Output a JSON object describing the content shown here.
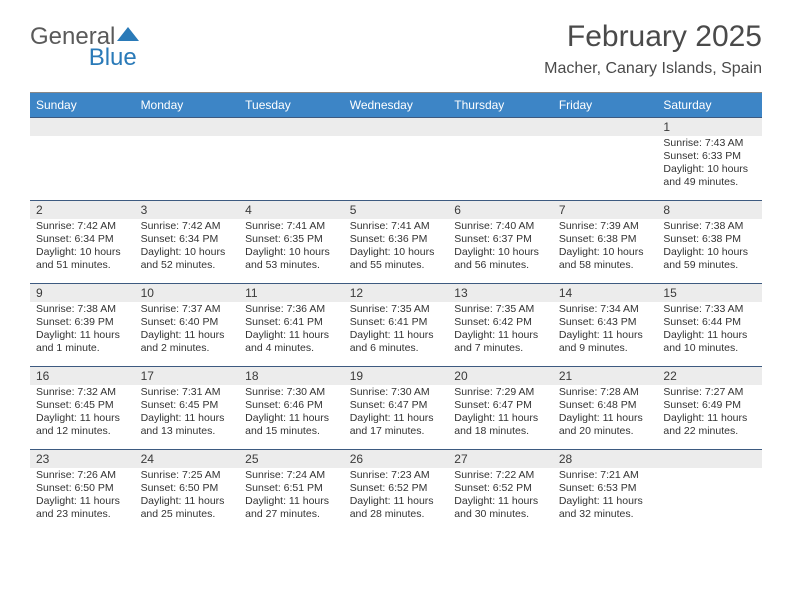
{
  "logo": {
    "text_a": "General",
    "text_b": "Blue"
  },
  "title": "February 2025",
  "location": "Macher, Canary Islands, Spain",
  "colors": {
    "header_bg": "#3d85c6",
    "header_text": "#ffffff",
    "daynum_bg": "#ececec",
    "rule": "#3d5a80",
    "text": "#333333",
    "logo_blue": "#2a7ab8"
  },
  "day_names": [
    "Sunday",
    "Monday",
    "Tuesday",
    "Wednesday",
    "Thursday",
    "Friday",
    "Saturday"
  ],
  "weeks": [
    [
      {
        "n": "",
        "sr": "",
        "ss": "",
        "dl": ""
      },
      {
        "n": "",
        "sr": "",
        "ss": "",
        "dl": ""
      },
      {
        "n": "",
        "sr": "",
        "ss": "",
        "dl": ""
      },
      {
        "n": "",
        "sr": "",
        "ss": "",
        "dl": ""
      },
      {
        "n": "",
        "sr": "",
        "ss": "",
        "dl": ""
      },
      {
        "n": "",
        "sr": "",
        "ss": "",
        "dl": ""
      },
      {
        "n": "1",
        "sr": "Sunrise: 7:43 AM",
        "ss": "Sunset: 6:33 PM",
        "dl": "Daylight: 10 hours and 49 minutes."
      }
    ],
    [
      {
        "n": "2",
        "sr": "Sunrise: 7:42 AM",
        "ss": "Sunset: 6:34 PM",
        "dl": "Daylight: 10 hours and 51 minutes."
      },
      {
        "n": "3",
        "sr": "Sunrise: 7:42 AM",
        "ss": "Sunset: 6:34 PM",
        "dl": "Daylight: 10 hours and 52 minutes."
      },
      {
        "n": "4",
        "sr": "Sunrise: 7:41 AM",
        "ss": "Sunset: 6:35 PM",
        "dl": "Daylight: 10 hours and 53 minutes."
      },
      {
        "n": "5",
        "sr": "Sunrise: 7:41 AM",
        "ss": "Sunset: 6:36 PM",
        "dl": "Daylight: 10 hours and 55 minutes."
      },
      {
        "n": "6",
        "sr": "Sunrise: 7:40 AM",
        "ss": "Sunset: 6:37 PM",
        "dl": "Daylight: 10 hours and 56 minutes."
      },
      {
        "n": "7",
        "sr": "Sunrise: 7:39 AM",
        "ss": "Sunset: 6:38 PM",
        "dl": "Daylight: 10 hours and 58 minutes."
      },
      {
        "n": "8",
        "sr": "Sunrise: 7:38 AM",
        "ss": "Sunset: 6:38 PM",
        "dl": "Daylight: 10 hours and 59 minutes."
      }
    ],
    [
      {
        "n": "9",
        "sr": "Sunrise: 7:38 AM",
        "ss": "Sunset: 6:39 PM",
        "dl": "Daylight: 11 hours and 1 minute."
      },
      {
        "n": "10",
        "sr": "Sunrise: 7:37 AM",
        "ss": "Sunset: 6:40 PM",
        "dl": "Daylight: 11 hours and 2 minutes."
      },
      {
        "n": "11",
        "sr": "Sunrise: 7:36 AM",
        "ss": "Sunset: 6:41 PM",
        "dl": "Daylight: 11 hours and 4 minutes."
      },
      {
        "n": "12",
        "sr": "Sunrise: 7:35 AM",
        "ss": "Sunset: 6:41 PM",
        "dl": "Daylight: 11 hours and 6 minutes."
      },
      {
        "n": "13",
        "sr": "Sunrise: 7:35 AM",
        "ss": "Sunset: 6:42 PM",
        "dl": "Daylight: 11 hours and 7 minutes."
      },
      {
        "n": "14",
        "sr": "Sunrise: 7:34 AM",
        "ss": "Sunset: 6:43 PM",
        "dl": "Daylight: 11 hours and 9 minutes."
      },
      {
        "n": "15",
        "sr": "Sunrise: 7:33 AM",
        "ss": "Sunset: 6:44 PM",
        "dl": "Daylight: 11 hours and 10 minutes."
      }
    ],
    [
      {
        "n": "16",
        "sr": "Sunrise: 7:32 AM",
        "ss": "Sunset: 6:45 PM",
        "dl": "Daylight: 11 hours and 12 minutes."
      },
      {
        "n": "17",
        "sr": "Sunrise: 7:31 AM",
        "ss": "Sunset: 6:45 PM",
        "dl": "Daylight: 11 hours and 13 minutes."
      },
      {
        "n": "18",
        "sr": "Sunrise: 7:30 AM",
        "ss": "Sunset: 6:46 PM",
        "dl": "Daylight: 11 hours and 15 minutes."
      },
      {
        "n": "19",
        "sr": "Sunrise: 7:30 AM",
        "ss": "Sunset: 6:47 PM",
        "dl": "Daylight: 11 hours and 17 minutes."
      },
      {
        "n": "20",
        "sr": "Sunrise: 7:29 AM",
        "ss": "Sunset: 6:47 PM",
        "dl": "Daylight: 11 hours and 18 minutes."
      },
      {
        "n": "21",
        "sr": "Sunrise: 7:28 AM",
        "ss": "Sunset: 6:48 PM",
        "dl": "Daylight: 11 hours and 20 minutes."
      },
      {
        "n": "22",
        "sr": "Sunrise: 7:27 AM",
        "ss": "Sunset: 6:49 PM",
        "dl": "Daylight: 11 hours and 22 minutes."
      }
    ],
    [
      {
        "n": "23",
        "sr": "Sunrise: 7:26 AM",
        "ss": "Sunset: 6:50 PM",
        "dl": "Daylight: 11 hours and 23 minutes."
      },
      {
        "n": "24",
        "sr": "Sunrise: 7:25 AM",
        "ss": "Sunset: 6:50 PM",
        "dl": "Daylight: 11 hours and 25 minutes."
      },
      {
        "n": "25",
        "sr": "Sunrise: 7:24 AM",
        "ss": "Sunset: 6:51 PM",
        "dl": "Daylight: 11 hours and 27 minutes."
      },
      {
        "n": "26",
        "sr": "Sunrise: 7:23 AM",
        "ss": "Sunset: 6:52 PM",
        "dl": "Daylight: 11 hours and 28 minutes."
      },
      {
        "n": "27",
        "sr": "Sunrise: 7:22 AM",
        "ss": "Sunset: 6:52 PM",
        "dl": "Daylight: 11 hours and 30 minutes."
      },
      {
        "n": "28",
        "sr": "Sunrise: 7:21 AM",
        "ss": "Sunset: 6:53 PM",
        "dl": "Daylight: 11 hours and 32 minutes."
      },
      {
        "n": "",
        "sr": "",
        "ss": "",
        "dl": ""
      }
    ]
  ]
}
